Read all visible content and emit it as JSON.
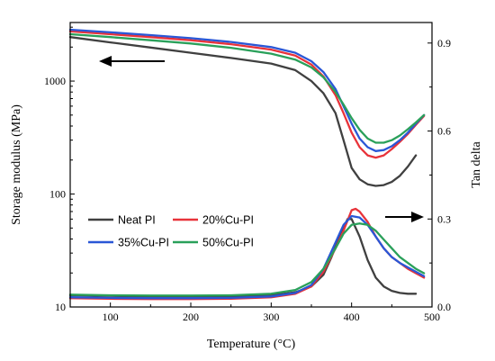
{
  "chart_data": {
    "type": "line",
    "xlabel": "Temperature (°C)",
    "ylabel_left": "Storage modulus (MPa)",
    "ylabel_right": "Tan delta",
    "xlim": [
      50,
      500
    ],
    "x_ticks": [
      100,
      200,
      300,
      400,
      500
    ],
    "y_left": {
      "scale": "log",
      "lim": [
        10,
        3300
      ],
      "tick_values": [
        10,
        100,
        1000
      ],
      "tick_labels": [
        "10",
        "100",
        "1000"
      ]
    },
    "y_right": {
      "scale": "linear",
      "lim": [
        0.0,
        0.97
      ],
      "tick_values": [
        0.0,
        0.3,
        0.6,
        0.9
      ],
      "tick_labels": [
        "0.0",
        "0.3",
        "0.6",
        "0.9"
      ]
    },
    "arrows": [
      {
        "points_to": "left axis",
        "direction": "left"
      },
      {
        "points_to": "right axis",
        "direction": "right"
      }
    ],
    "legend": {
      "placement": "lower-left",
      "entries": [
        "Neat PI",
        "20%Cu-PI",
        "35%Cu-PI",
        "50%Cu-PI"
      ]
    },
    "series": [
      {
        "name": "Neat PI",
        "color": "#404040",
        "storage_modulus": {
          "x": [
            50,
            100,
            150,
            200,
            250,
            300,
            330,
            350,
            365,
            380,
            390,
            400,
            410,
            420,
            430,
            440,
            450,
            460,
            470,
            480
          ],
          "y": [
            2450,
            2200,
            1980,
            1780,
            1600,
            1430,
            1250,
            1000,
            780,
            520,
            300,
            170,
            135,
            122,
            118,
            120,
            128,
            145,
            175,
            220
          ]
        },
        "tan_delta": {
          "x": [
            50,
            100,
            150,
            200,
            250,
            300,
            330,
            350,
            365,
            375,
            385,
            395,
            400,
            410,
            420,
            430,
            440,
            450,
            460,
            470,
            480
          ],
          "y": [
            0.04,
            0.038,
            0.036,
            0.035,
            0.036,
            0.04,
            0.05,
            0.07,
            0.11,
            0.17,
            0.24,
            0.3,
            0.3,
            0.24,
            0.16,
            0.1,
            0.07,
            0.055,
            0.048,
            0.045,
            0.045
          ]
        }
      },
      {
        "name": "20%Cu-PI",
        "color": "#e8333a",
        "storage_modulus": {
          "x": [
            50,
            100,
            150,
            200,
            250,
            300,
            330,
            350,
            365,
            380,
            390,
            400,
            410,
            420,
            430,
            440,
            450,
            460,
            470,
            480,
            490
          ],
          "y": [
            2750,
            2600,
            2450,
            2300,
            2120,
            1900,
            1680,
            1400,
            1100,
            750,
            520,
            350,
            260,
            220,
            210,
            220,
            250,
            290,
            340,
            410,
            490
          ]
        },
        "tan_delta": {
          "x": [
            50,
            100,
            150,
            200,
            250,
            300,
            330,
            350,
            365,
            380,
            390,
            400,
            405,
            410,
            420,
            430,
            440,
            450,
            460,
            470,
            480,
            490
          ],
          "y": [
            0.03,
            0.028,
            0.027,
            0.027,
            0.028,
            0.033,
            0.045,
            0.07,
            0.12,
            0.2,
            0.26,
            0.33,
            0.335,
            0.325,
            0.29,
            0.24,
            0.2,
            0.17,
            0.15,
            0.13,
            0.115,
            0.1
          ]
        }
      },
      {
        "name": "35%Cu-PI",
        "color": "#2a57d6",
        "storage_modulus": {
          "x": [
            50,
            100,
            150,
            200,
            250,
            300,
            330,
            350,
            365,
            380,
            390,
            400,
            410,
            420,
            430,
            440,
            450,
            460,
            470,
            480,
            490
          ],
          "y": [
            2850,
            2700,
            2550,
            2400,
            2220,
            2000,
            1780,
            1500,
            1200,
            850,
            600,
            420,
            310,
            260,
            240,
            245,
            265,
            300,
            350,
            420,
            500
          ]
        },
        "tan_delta": {
          "x": [
            50,
            100,
            150,
            200,
            250,
            300,
            330,
            350,
            365,
            380,
            390,
            400,
            410,
            420,
            430,
            440,
            450,
            460,
            470,
            480,
            490
          ],
          "y": [
            0.033,
            0.031,
            0.03,
            0.03,
            0.031,
            0.036,
            0.048,
            0.075,
            0.13,
            0.22,
            0.28,
            0.31,
            0.305,
            0.28,
            0.24,
            0.2,
            0.17,
            0.15,
            0.135,
            0.12,
            0.105
          ]
        }
      },
      {
        "name": "50%Cu-PI",
        "color": "#2aa05a",
        "storage_modulus": {
          "x": [
            50,
            100,
            150,
            200,
            250,
            300,
            330,
            350,
            365,
            380,
            390,
            400,
            410,
            420,
            430,
            440,
            450,
            460,
            470,
            480,
            490
          ],
          "y": [
            2600,
            2450,
            2300,
            2150,
            1970,
            1750,
            1550,
            1320,
            1080,
            800,
            620,
            470,
            370,
            310,
            285,
            285,
            300,
            330,
            375,
            430,
            500
          ]
        },
        "tan_delta": {
          "x": [
            50,
            100,
            150,
            200,
            250,
            300,
            330,
            350,
            365,
            380,
            390,
            400,
            410,
            420,
            430,
            440,
            450,
            460,
            470,
            480,
            490
          ],
          "y": [
            0.042,
            0.04,
            0.039,
            0.039,
            0.04,
            0.045,
            0.058,
            0.085,
            0.13,
            0.2,
            0.25,
            0.28,
            0.285,
            0.28,
            0.26,
            0.23,
            0.2,
            0.17,
            0.15,
            0.13,
            0.115
          ]
        }
      }
    ]
  }
}
